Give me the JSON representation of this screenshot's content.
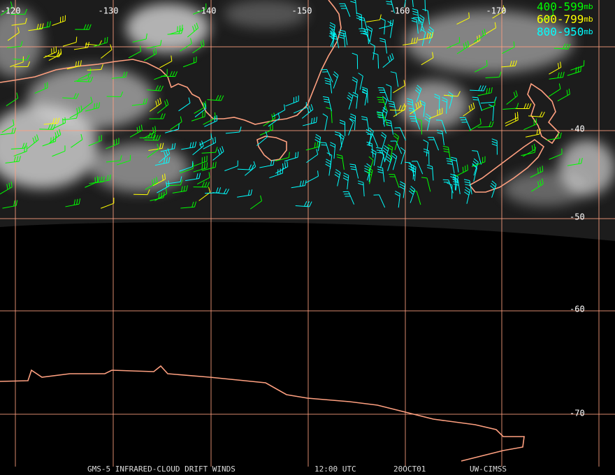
{
  "longitudes": [
    -120,
    -130,
    -140,
    -150,
    -160,
    -170
  ],
  "latitudes": [
    -40,
    -50,
    -60,
    -70
  ],
  "legend": [
    {
      "range": "400-599",
      "unit": "mb",
      "color": "#00ff00"
    },
    {
      "range": "600-799",
      "unit": "mb",
      "color": "#ffff00"
    },
    {
      "range": "800-950",
      "unit": "mb",
      "color": "#00ffff"
    }
  ],
  "footer": [
    "GMS-5 INFRARED-CLOUD DRIFT WINDS",
    "12:00 UTC",
    "20OCT01",
    "UW-CIMSS"
  ]
}
